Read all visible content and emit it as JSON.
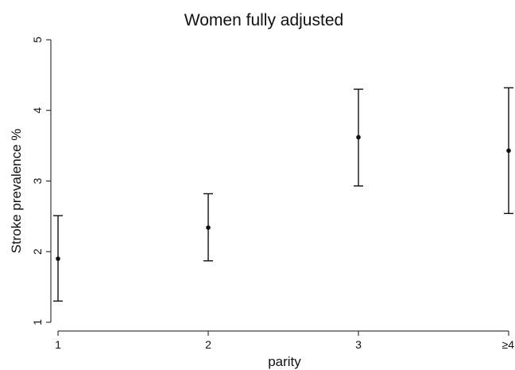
{
  "chart_data": {
    "type": "scatter",
    "title": "Women fully adjusted",
    "xlabel": "parity",
    "ylabel": "Stroke prevalence %",
    "categories": [
      "1",
      "2",
      "3",
      "≥4"
    ],
    "series": [
      {
        "values": [
          1.9,
          2.34,
          3.62,
          3.43
        ],
        "lower": [
          1.3,
          1.87,
          2.93,
          2.54
        ],
        "upper": [
          2.51,
          2.82,
          4.3,
          4.32
        ]
      }
    ],
    "ylim": [
      1,
      5
    ],
    "yticks": [
      1,
      2,
      3,
      4,
      5
    ],
    "grid": false,
    "legend": "none",
    "colors": {
      "marks": "#111111",
      "axis": "#111111",
      "background": "#ffffff"
    }
  }
}
